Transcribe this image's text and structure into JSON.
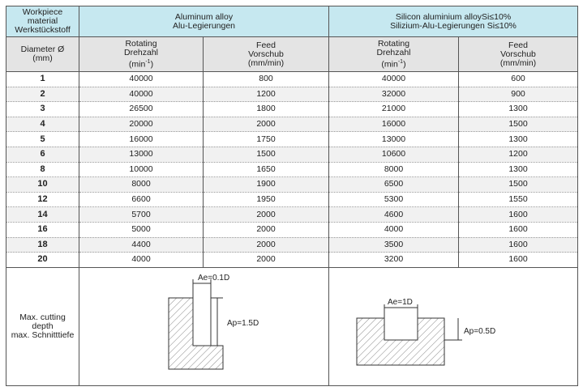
{
  "header": {
    "material": "Workpiece\nmaterial\nWerkstückstoff",
    "groups": [
      "Aluminum alloy\nAlu-Legierungen",
      "Silicon aluminium alloySi≤10%\nSilizium-Alu-Legierungen Si≤10%"
    ],
    "diameter": "Diameter Ø\n(mm)",
    "rotating": {
      "text": "Rotating\nDrehzahl",
      "unit_prefix": "(min",
      "unit_sup": "-1",
      "unit_suffix": ")"
    },
    "feed": "Feed\nVorschub\n(mm/min)"
  },
  "table": {
    "rows": [
      [
        "1",
        "40000",
        "800",
        "40000",
        "600"
      ],
      [
        "2",
        "40000",
        "1200",
        "32000",
        "900"
      ],
      [
        "3",
        "26500",
        "1800",
        "21000",
        "1300"
      ],
      [
        "4",
        "20000",
        "2000",
        "16000",
        "1500"
      ],
      [
        "5",
        "16000",
        "1750",
        "13000",
        "1300"
      ],
      [
        "6",
        "13000",
        "1500",
        "10600",
        "1200"
      ],
      [
        "8",
        "10000",
        "1650",
        "8000",
        "1300"
      ],
      [
        "10",
        "8000",
        "1900",
        "6500",
        "1500"
      ],
      [
        "12",
        "6600",
        "1950",
        "5300",
        "1550"
      ],
      [
        "14",
        "5700",
        "2000",
        "4600",
        "1600"
      ],
      [
        "16",
        "5000",
        "2000",
        "4000",
        "1600"
      ],
      [
        "18",
        "4400",
        "2000",
        "3500",
        "1600"
      ],
      [
        "20",
        "4000",
        "2000",
        "3200",
        "1600"
      ]
    ]
  },
  "footer": {
    "label": "Max. cutting\ndepth\nmax. Schnitttiefe",
    "diagram1": {
      "ae": "Ae=0.1D",
      "ap": "Ap=1.5D"
    },
    "diagram2": {
      "ae": "Ae=1D",
      "ap": "Ap=0.5D"
    }
  }
}
